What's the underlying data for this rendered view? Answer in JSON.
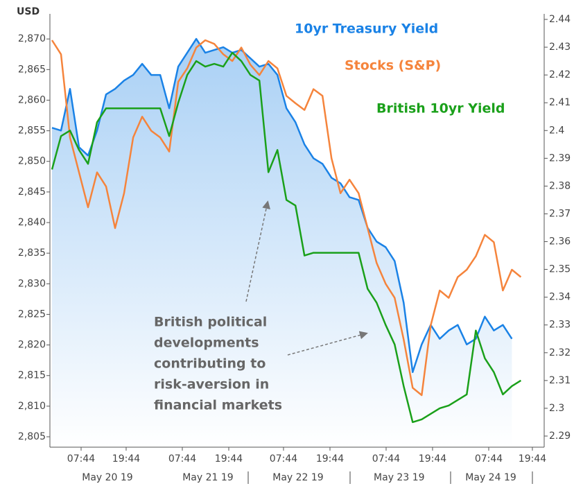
{
  "chart_data": {
    "type": "line",
    "ylabel": "USD",
    "x": [
      0,
      2.4,
      4.8,
      7.2,
      9.6,
      12,
      14.4,
      16.8,
      19.2,
      21.6,
      24,
      26.4,
      28.8,
      31.2,
      33.6,
      36,
      38.4,
      40.8,
      43.2,
      45.6,
      48,
      50.4,
      52.8,
      55.2,
      57.6,
      60,
      62.4,
      64.8,
      67.2,
      69.6,
      72,
      74.4,
      76.8,
      79.2,
      81.6,
      84,
      86.4,
      88.8,
      91.2,
      93.6,
      96,
      98.4,
      100.8,
      103.2,
      105.6,
      108,
      110.4,
      112.8,
      115.2,
      117.6,
      120,
      122.4,
      124.8
    ],
    "xlim": [
      -0.55,
      131
    ],
    "xticks": [
      {
        "value": 7.75,
        "label": "07:44"
      },
      {
        "value": 19.74,
        "label": "19:44"
      },
      {
        "value": 34.69,
        "label": "07:44"
      },
      {
        "value": 47.05,
        "label": "19:44"
      },
      {
        "value": 61.62,
        "label": "07:44"
      },
      {
        "value": 73.99,
        "label": "19:44"
      },
      {
        "value": 88.93,
        "label": "07:44"
      },
      {
        "value": 101.29,
        "label": "19:44"
      },
      {
        "value": 116.24,
        "label": "07:44"
      },
      {
        "value": 127.86,
        "label": "19:44"
      }
    ],
    "xticks2": [
      {
        "value": 14.76,
        "label": "May 20 19"
      },
      {
        "value": 41.51,
        "label": "May 21 19"
      },
      {
        "value": 65.5,
        "label": "May 22 19"
      },
      {
        "value": 92.4,
        "label": "May 23 19"
      },
      {
        "value": 116.8,
        "label": "May 24 19"
      }
    ],
    "ylim": [
      2803.3,
      2874.1
    ],
    "yticks": [
      {
        "value": 2805,
        "label": "2,805"
      },
      {
        "value": 2810,
        "label": "2,810"
      },
      {
        "value": 2815,
        "label": "2,815"
      },
      {
        "value": 2820,
        "label": "2,820"
      },
      {
        "value": 2825,
        "label": "2,825"
      },
      {
        "value": 2830,
        "label": "2,830"
      },
      {
        "value": 2835,
        "label": "2,835"
      },
      {
        "value": 2840,
        "label": "2,840"
      },
      {
        "value": 2845,
        "label": "2,845"
      },
      {
        "value": 2850,
        "label": "2,850"
      },
      {
        "value": 2855,
        "label": "2,855"
      },
      {
        "value": 2860,
        "label": "2,860"
      },
      {
        "value": 2865,
        "label": "2,865"
      },
      {
        "value": 2870,
        "label": "2,870"
      }
    ],
    "y2lim": [
      2.286,
      2.442
    ],
    "y2ticks": [
      2.29,
      2.3,
      2.31,
      2.32,
      2.33,
      2.34,
      2.35,
      2.36,
      2.37,
      2.38,
      2.39,
      2.4,
      2.41,
      2.42,
      2.43,
      2.44
    ],
    "series": [
      {
        "name": "10yr Treasury Yield",
        "color": "#1a82e6",
        "axis": "y2",
        "area": true,
        "values": [
          2.401,
          2.4,
          2.415,
          2.394,
          2.391,
          2.4,
          2.413,
          2.415,
          2.418,
          2.42,
          2.424,
          2.42,
          2.42,
          2.408,
          2.423,
          2.428,
          2.433,
          2.428,
          2.429,
          2.43,
          2.428,
          2.429,
          2.426,
          2.423,
          2.424,
          2.42,
          2.408,
          2.403,
          2.395,
          2.39,
          2.388,
          2.383,
          2.381,
          2.376,
          2.375,
          2.365,
          2.36,
          2.358,
          2.353,
          2.338,
          2.313,
          2.323,
          2.33,
          2.325,
          2.328,
          2.33,
          2.323,
          2.325,
          2.333,
          2.328,
          2.33,
          2.325,
          null
        ]
      },
      {
        "name": "Stocks (S&P)",
        "color": "#f5843c",
        "axis": "y",
        "values": [
          2869.8,
          2867.5,
          2853.9,
          2848.2,
          2842.5,
          2848.2,
          2845.9,
          2839.1,
          2844.8,
          2853.9,
          2857.3,
          2855.0,
          2853.9,
          2851.6,
          2863.0,
          2865.2,
          2868.6,
          2869.8,
          2869.2,
          2867.5,
          2866.4,
          2868.6,
          2865.8,
          2864.1,
          2866.4,
          2865.2,
          2860.7,
          2859.5,
          2858.4,
          2861.8,
          2860.7,
          2850.5,
          2844.8,
          2847.0,
          2844.8,
          2839.1,
          2833.4,
          2830.0,
          2827.7,
          2820.9,
          2813.0,
          2811.8,
          2823.2,
          2828.9,
          2827.7,
          2831.1,
          2832.3,
          2834.5,
          2838.0,
          2836.8,
          2828.9,
          2832.3,
          2831.1
        ]
      },
      {
        "name": "British 10yr Yield",
        "color": "#1aa01a",
        "axis": "y2",
        "values": [
          2.386,
          2.398,
          2.4,
          2.393,
          2.388,
          2.403,
          2.408,
          2.408,
          2.408,
          2.408,
          2.408,
          2.408,
          2.408,
          2.398,
          2.41,
          2.42,
          2.425,
          2.423,
          2.424,
          2.423,
          2.428,
          2.425,
          2.42,
          2.418,
          2.385,
          2.393,
          2.375,
          2.373,
          2.355,
          2.356,
          2.356,
          2.356,
          2.356,
          2.356,
          2.356,
          2.343,
          2.338,
          2.33,
          2.323,
          2.308,
          2.295,
          2.296,
          2.298,
          2.3,
          2.301,
          2.303,
          2.305,
          2.328,
          2.318,
          2.313,
          2.305,
          2.308,
          2.31
        ]
      }
    ],
    "annotation": [
      "British political",
      "developments",
      "contributing to",
      "risk-aversion in",
      "financial markets"
    ]
  }
}
